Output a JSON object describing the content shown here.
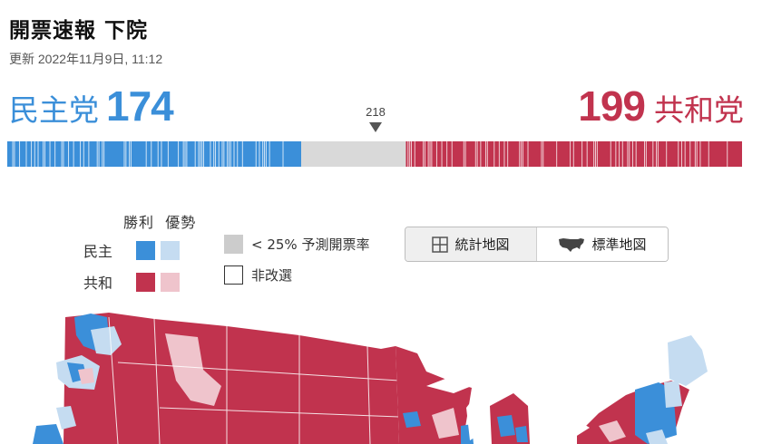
{
  "header": {
    "title": "開票速報 下院",
    "updated": "更新 2022年11月9日, 11:12"
  },
  "tally": {
    "dem_party": "民主党",
    "dem_seats": "174",
    "rep_seats": "199",
    "rep_party": "共和党",
    "majority": "218",
    "total_seats": 435,
    "dem_color": "#3b8fd9",
    "rep_color": "#c1334e",
    "pending_color": "#d9d9d9"
  },
  "legend": {
    "col_won": "勝利",
    "col_lead": "優勢",
    "dem_label": "民主",
    "rep_label": "共和",
    "dem_won_color": "#3b8fd9",
    "dem_lead_color": "#c5dcf1",
    "rep_won_color": "#c1334e",
    "rep_lead_color": "#efc4cc",
    "low_report": "< 25% 予測開票率",
    "no_change": "非改選"
  },
  "map_toggle": {
    "stat_map": "統計地図",
    "std_map": "標準地図",
    "stat_icon": "grid-icon",
    "std_icon": "us-map-icon",
    "active": "std_map"
  }
}
